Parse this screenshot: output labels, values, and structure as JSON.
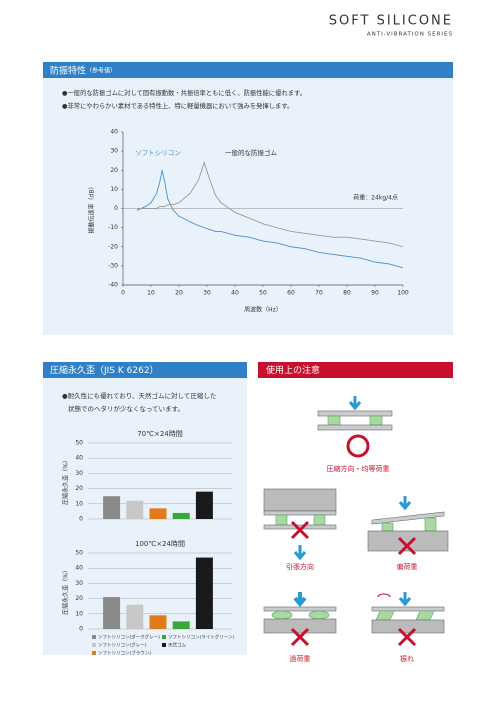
{
  "header": {
    "title": "SOFT SILICONE",
    "subtitle": "ANTI-VIBRATION SERIES"
  },
  "sections": [
    {
      "title": "防振特性",
      "title_note": "（参考値）",
      "bullets": [
        "●一般的な防振ゴムに対して固有振動数・共振倍率ともに低く、防振性能に優れます。",
        "●非常にやわらかい素材である特性上、特に軽量機器において強みを発揮します。"
      ],
      "chart": {
        "type": "line",
        "xlabel": "周波数（Hz）",
        "ylabel": "振動伝達率（dB）",
        "annotation": "荷重：24kg/4点",
        "x": [
          5,
          8,
          10,
          12,
          13,
          14,
          15,
          16,
          18,
          20,
          24,
          27,
          29,
          31,
          33,
          35,
          40,
          45,
          50,
          55,
          60,
          65,
          70,
          75,
          80,
          85,
          90,
          95,
          100
        ],
        "series": [
          {
            "name": "ソフトシリコン",
            "color": "#4a8fd0",
            "values": [
              -1,
              1,
              3,
              8,
              13,
              20,
              13,
              5,
              -1,
              -4,
              -7,
              -9,
              -10,
              -11,
              -12,
              -12,
              -14,
              -15,
              -17,
              -18,
              -20,
              -21,
              -23,
              -24,
              -25,
              -26,
              -28,
              -29,
              -31
            ]
          },
          {
            "name": "一般的な防振ゴム",
            "color": "#9a9a9a",
            "values": [
              0,
              0,
              0,
              0,
              1,
              1,
              1,
              2,
              2,
              3,
              8,
              15,
              24,
              15,
              7,
              3,
              -2,
              -5,
              -8,
              -10,
              -12,
              -13,
              -14,
              -15,
              -15,
              -16,
              -17,
              -18,
              -20
            ]
          }
        ],
        "xlim": [
          0,
          100
        ],
        "xticks": [
          0,
          10,
          20,
          30,
          40,
          50,
          60,
          70,
          80,
          90,
          100
        ],
        "ylim": [
          -40,
          40
        ],
        "yticks": [
          -40,
          -30,
          -20,
          -10,
          0,
          10,
          20,
          30,
          40
        ]
      }
    },
    {
      "title": "圧縮永久歪（JIS K 6262）",
      "bullets": [
        "●耐久性にも優れており、天然ゴムに対して圧縮した",
        "状態でのヘタリが少なくなっています。"
      ],
      "series": [
        {
          "name": "ソフトシリコン(ダークグレー)",
          "color": "#8a8a8a"
        },
        {
          "name": "ソフトシリコン(グレー)",
          "color": "#c8c8c8"
        },
        {
          "name": "ソフトシリコン(ブラウン)",
          "color": "#e07a1a"
        },
        {
          "name": "ソフトシリコン(ライトグリーン)",
          "color": "#3aa63a"
        },
        {
          "name": "天然ゴム",
          "color": "#1a1a1a"
        }
      ],
      "charts": [
        {
          "type": "bar",
          "title": "70℃×24時間",
          "ylabel": "圧縮永久歪（%）",
          "values": [
            15,
            12,
            7,
            4,
            18
          ],
          "ylim": [
            0,
            50
          ],
          "yticks": [
            0,
            10,
            20,
            30,
            40,
            50
          ],
          "grid": true
        },
        {
          "type": "bar",
          "title": "100℃×24時間",
          "ylabel": "圧縮永久歪（%）",
          "values": [
            21,
            16,
            9,
            5,
            47
          ],
          "ylim": [
            0,
            50
          ],
          "yticks": [
            0,
            10,
            20,
            30,
            40,
            50
          ],
          "grid": true
        }
      ]
    },
    {
      "title": "使用上の注意",
      "captions": [
        "圧縮方向・均等荷重",
        "引張方向",
        "偏荷重",
        "過荷重",
        "振れ"
      ]
    }
  ]
}
